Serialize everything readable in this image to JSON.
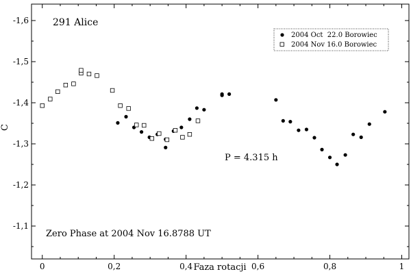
{
  "chart_data": {
    "type": "scatter",
    "title": "291 Alice",
    "xlabel": "Faza rotacji",
    "ylabel": "C",
    "xlim": [
      -0.03,
      1.02
    ],
    "ylim": [
      -1.64,
      -1.02
    ],
    "y_inverted": true,
    "x_ticks": [
      0,
      0.2,
      0.4,
      0.6,
      0.8,
      1
    ],
    "x_tick_labels": [
      "0",
      "0,2",
      "0,4",
      "0,6",
      "0,8",
      "1"
    ],
    "y_ticks": [
      -1.6,
      -1.5,
      -1.4,
      -1.3,
      -1.2,
      -1.1
    ],
    "y_tick_labels": [
      "-1,6",
      "-1,5",
      "-1,4",
      "-1,3",
      "-1,2",
      "-1,1"
    ],
    "annotations": [
      "P = 4.315 h",
      "Zero Phase at 2004 Nov 16.8788 UT"
    ],
    "legend_position": "top-right",
    "series": [
      {
        "name": "2004 Oct  22.0 Borowiec",
        "marker": "filled-circle",
        "points": [
          [
            0.21,
            -1.351
          ],
          [
            0.233,
            -1.366
          ],
          [
            0.255,
            -1.34
          ],
          [
            0.276,
            -1.329
          ],
          [
            0.298,
            -1.316
          ],
          [
            0.32,
            -1.323
          ],
          [
            0.343,
            -1.311
          ],
          [
            0.343,
            -1.291
          ],
          [
            0.365,
            -1.331
          ],
          [
            0.387,
            -1.34
          ],
          [
            0.41,
            -1.36
          ],
          [
            0.43,
            -1.387
          ],
          [
            0.45,
            -1.383
          ],
          [
            0.5,
            -1.418
          ],
          [
            0.5,
            -1.421
          ],
          [
            0.52,
            -1.421
          ],
          [
            0.65,
            -1.407
          ],
          [
            0.67,
            -1.356
          ],
          [
            0.69,
            -1.354
          ],
          [
            0.713,
            -1.333
          ],
          [
            0.735,
            -1.335
          ],
          [
            0.757,
            -1.315
          ],
          [
            0.778,
            -1.286
          ],
          [
            0.8,
            -1.267
          ],
          [
            0.82,
            -1.25
          ],
          [
            0.843,
            -1.273
          ],
          [
            0.865,
            -1.323
          ],
          [
            0.887,
            -1.316
          ],
          [
            0.91,
            -1.348
          ],
          [
            0.953,
            -1.378
          ]
        ]
      },
      {
        "name": "2004 Nov 16.0 Borowiec",
        "marker": "open-square",
        "points": [
          [
            0.0,
            -1.393
          ],
          [
            0.022,
            -1.409
          ],
          [
            0.043,
            -1.427
          ],
          [
            0.065,
            -1.443
          ],
          [
            0.087,
            -1.446
          ],
          [
            0.108,
            -1.472
          ],
          [
            0.108,
            -1.479
          ],
          [
            0.13,
            -1.47
          ],
          [
            0.152,
            -1.466
          ],
          [
            0.195,
            -1.43
          ],
          [
            0.217,
            -1.393
          ],
          [
            0.24,
            -1.386
          ],
          [
            0.262,
            -1.346
          ],
          [
            0.283,
            -1.345
          ],
          [
            0.305,
            -1.313
          ],
          [
            0.325,
            -1.325
          ],
          [
            0.347,
            -1.31
          ],
          [
            0.37,
            -1.333
          ],
          [
            0.39,
            -1.316
          ],
          [
            0.41,
            -1.323
          ],
          [
            0.433,
            -1.356
          ]
        ]
      }
    ]
  }
}
